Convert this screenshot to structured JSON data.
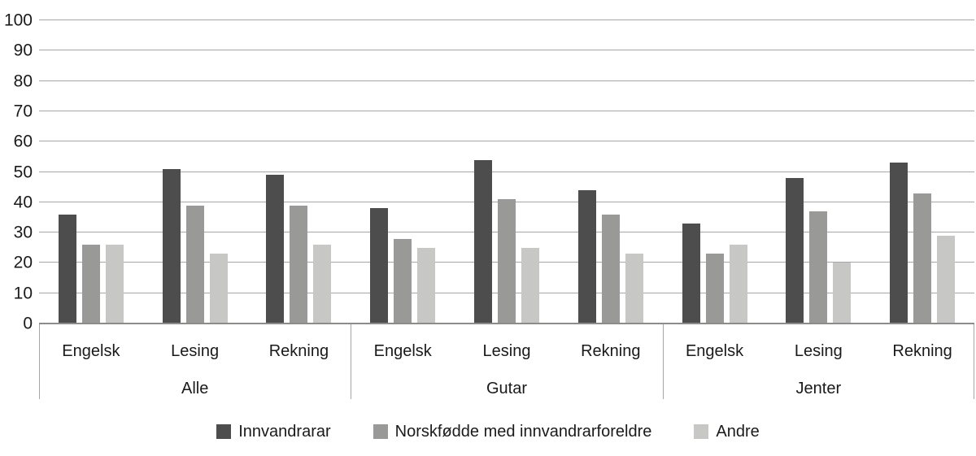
{
  "chart_data": {
    "type": "bar",
    "title": "",
    "xlabel": "",
    "ylabel": "",
    "ylim": [
      0,
      100
    ],
    "ytick_step": 10,
    "grid": true,
    "legend_position": "bottom",
    "colors": {
      "gridline": "#a6a6a6",
      "axis_line": "#8c8c8c",
      "divider": "#a6a6a6",
      "text": "#1a1a1a",
      "background": "#ffffff"
    },
    "groups": [
      {
        "label": "Alle",
        "categories": [
          "Engelsk",
          "Lesing",
          "Rekning"
        ]
      },
      {
        "label": "Gutar",
        "categories": [
          "Engelsk",
          "Lesing",
          "Rekning"
        ]
      },
      {
        "label": "Jenter",
        "categories": [
          "Engelsk",
          "Lesing",
          "Rekning"
        ]
      }
    ],
    "series": [
      {
        "name": "Innvandrarar",
        "color": "#4d4d4d",
        "values": [
          36,
          51,
          49,
          38,
          54,
          44,
          33,
          48,
          53
        ]
      },
      {
        "name": "Norskfødde med innvandrarforeldre",
        "color": "#999998",
        "values": [
          26,
          39,
          39,
          28,
          41,
          36,
          23,
          37,
          43
        ]
      },
      {
        "name": "Andre",
        "color": "#c7c7c6",
        "values": [
          26,
          23,
          26,
          25,
          25,
          23,
          26,
          20,
          29
        ]
      }
    ]
  }
}
